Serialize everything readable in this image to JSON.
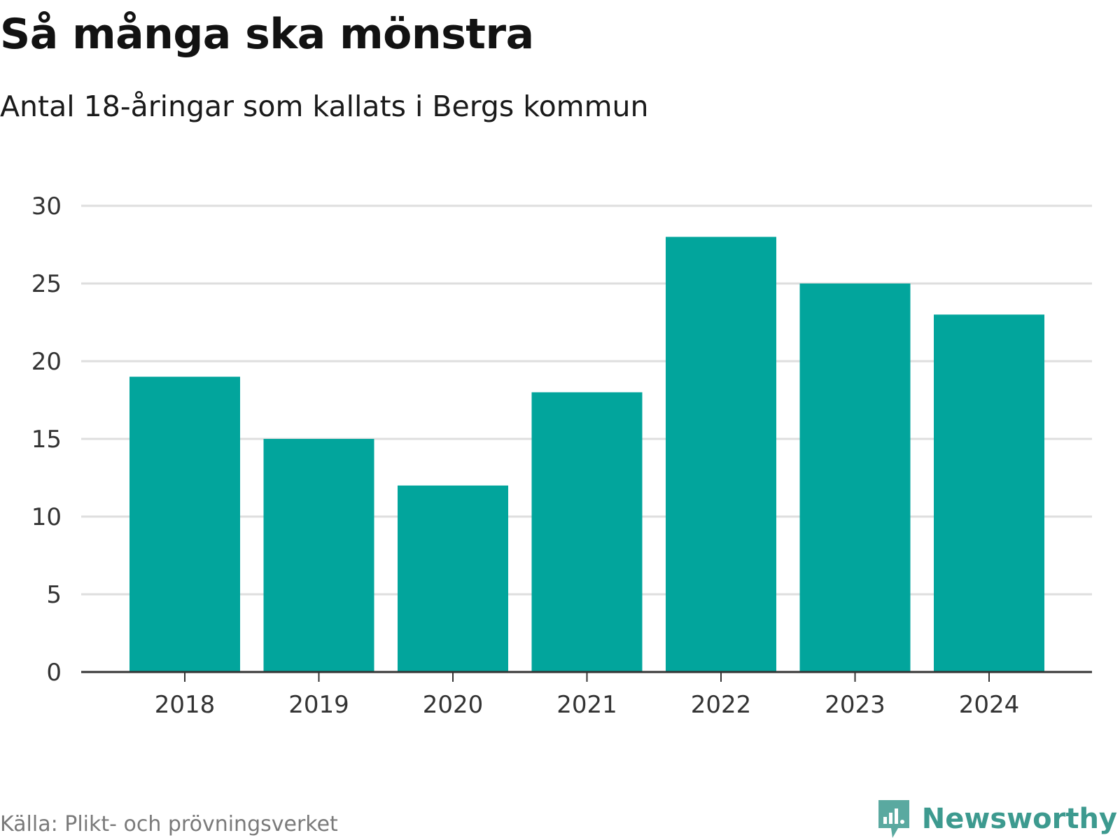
{
  "header": {
    "title": "Så många ska mönstra",
    "subtitle": "Antal 18-åringar som kallats i Bergs kommun"
  },
  "footer": {
    "source": "Källa: Plikt- och prövningsverket",
    "brand": "Newsworthy"
  },
  "colors": {
    "bar": "#02a59c",
    "grid": "#dedede",
    "axis": "#333333",
    "brand": "#3d9a8f"
  },
  "chart_data": {
    "type": "bar",
    "title": "Så många ska mönstra",
    "subtitle": "Antal 18-åringar som kallats i Bergs kommun",
    "xlabel": "",
    "ylabel": "",
    "categories": [
      "2018",
      "2019",
      "2020",
      "2021",
      "2022",
      "2023",
      "2024"
    ],
    "values": [
      19,
      15,
      12,
      18,
      28,
      25,
      23
    ],
    "ylim": [
      0,
      30
    ],
    "yticks": [
      0,
      5,
      10,
      15,
      20,
      25,
      30
    ],
    "grid": true,
    "legend": "none"
  }
}
